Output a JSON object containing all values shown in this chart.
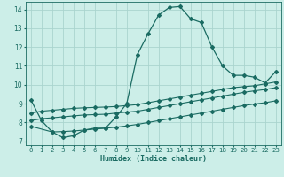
{
  "xlabel": "Humidex (Indice chaleur)",
  "background_color": "#cceee8",
  "grid_color": "#aad4ce",
  "line_color": "#1a6b62",
  "xlim": [
    -0.5,
    23.5
  ],
  "ylim": [
    6.8,
    14.4
  ],
  "yticks": [
    7,
    8,
    9,
    10,
    11,
    12,
    13,
    14
  ],
  "xticks": [
    0,
    1,
    2,
    3,
    4,
    5,
    6,
    7,
    8,
    9,
    10,
    11,
    12,
    13,
    14,
    15,
    16,
    17,
    18,
    19,
    20,
    21,
    22,
    23
  ],
  "main_x": [
    0,
    1,
    2,
    3,
    4,
    5,
    6,
    7,
    8,
    9,
    10,
    11,
    12,
    13,
    14,
    15,
    16,
    17,
    18,
    19,
    20,
    21,
    22,
    23
  ],
  "main_y": [
    9.2,
    8.1,
    7.5,
    7.2,
    7.3,
    7.6,
    7.7,
    7.7,
    8.3,
    9.0,
    11.6,
    12.7,
    13.7,
    14.1,
    14.15,
    13.5,
    13.3,
    12.0,
    11.0,
    10.5,
    10.5,
    10.4,
    10.1,
    10.7
  ],
  "line1_x": [
    0,
    1,
    2,
    3,
    4,
    5,
    6,
    7,
    8,
    9,
    10,
    11,
    12,
    13,
    14,
    15,
    16,
    17,
    18,
    19,
    20,
    21,
    22,
    23
  ],
  "line1_y": [
    8.5,
    8.6,
    8.65,
    8.7,
    8.75,
    8.78,
    8.8,
    8.82,
    8.85,
    8.9,
    8.95,
    9.05,
    9.15,
    9.25,
    9.35,
    9.45,
    9.55,
    9.65,
    9.75,
    9.85,
    9.9,
    9.95,
    10.05,
    10.15
  ],
  "line2_x": [
    0,
    1,
    2,
    3,
    4,
    5,
    6,
    7,
    8,
    9,
    10,
    11,
    12,
    13,
    14,
    15,
    16,
    17,
    18,
    19,
    20,
    21,
    22,
    23
  ],
  "line2_y": [
    8.1,
    8.2,
    8.25,
    8.3,
    8.35,
    8.4,
    8.42,
    8.44,
    8.5,
    8.55,
    8.6,
    8.7,
    8.8,
    8.9,
    9.0,
    9.1,
    9.2,
    9.3,
    9.4,
    9.5,
    9.6,
    9.68,
    9.75,
    9.85
  ],
  "line3_x": [
    0,
    2,
    3,
    4,
    5,
    6,
    7,
    8,
    9,
    10,
    11,
    12,
    13,
    14,
    15,
    16,
    17,
    18,
    19,
    20,
    21,
    22,
    23
  ],
  "line3_y": [
    7.8,
    7.5,
    7.52,
    7.55,
    7.6,
    7.65,
    7.7,
    7.75,
    7.82,
    7.9,
    8.0,
    8.1,
    8.2,
    8.3,
    8.4,
    8.5,
    8.6,
    8.7,
    8.8,
    8.9,
    8.98,
    9.05,
    9.15
  ]
}
